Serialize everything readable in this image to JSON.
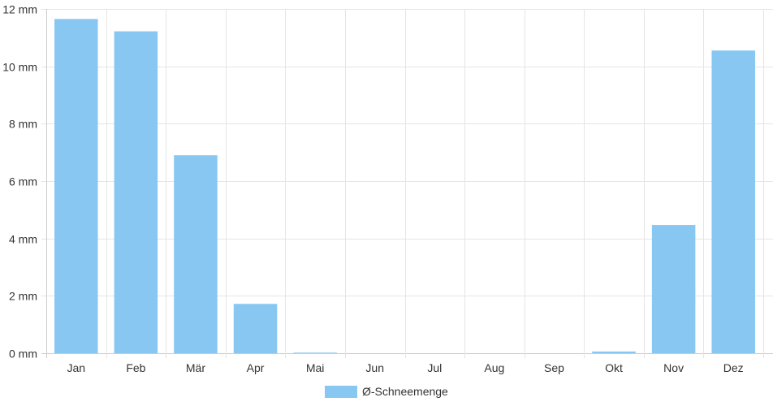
{
  "chart_data": {
    "type": "bar",
    "categories": [
      "Jan",
      "Feb",
      "Mär",
      "Apr",
      "Mai",
      "Jun",
      "Jul",
      "Aug",
      "Sep",
      "Okt",
      "Nov",
      "Dez"
    ],
    "series": [
      {
        "name": "Ø-Schneemenge",
        "values": [
          11.65,
          11.22,
          6.9,
          1.72,
          0.02,
          0,
          0,
          0,
          0,
          0.06,
          4.47,
          10.55
        ],
        "color": "#88c7f2"
      }
    ],
    "ylim": [
      0,
      12
    ],
    "yticks": [
      "0 mm",
      "2 mm",
      "4 mm",
      "6 mm",
      "8 mm",
      "10 mm",
      "12 mm"
    ],
    "grid": true,
    "legend_position": "bottom-center",
    "colors": {
      "grid": "#e5e5e5",
      "axis": "#cccccc",
      "text": "#333333"
    }
  }
}
